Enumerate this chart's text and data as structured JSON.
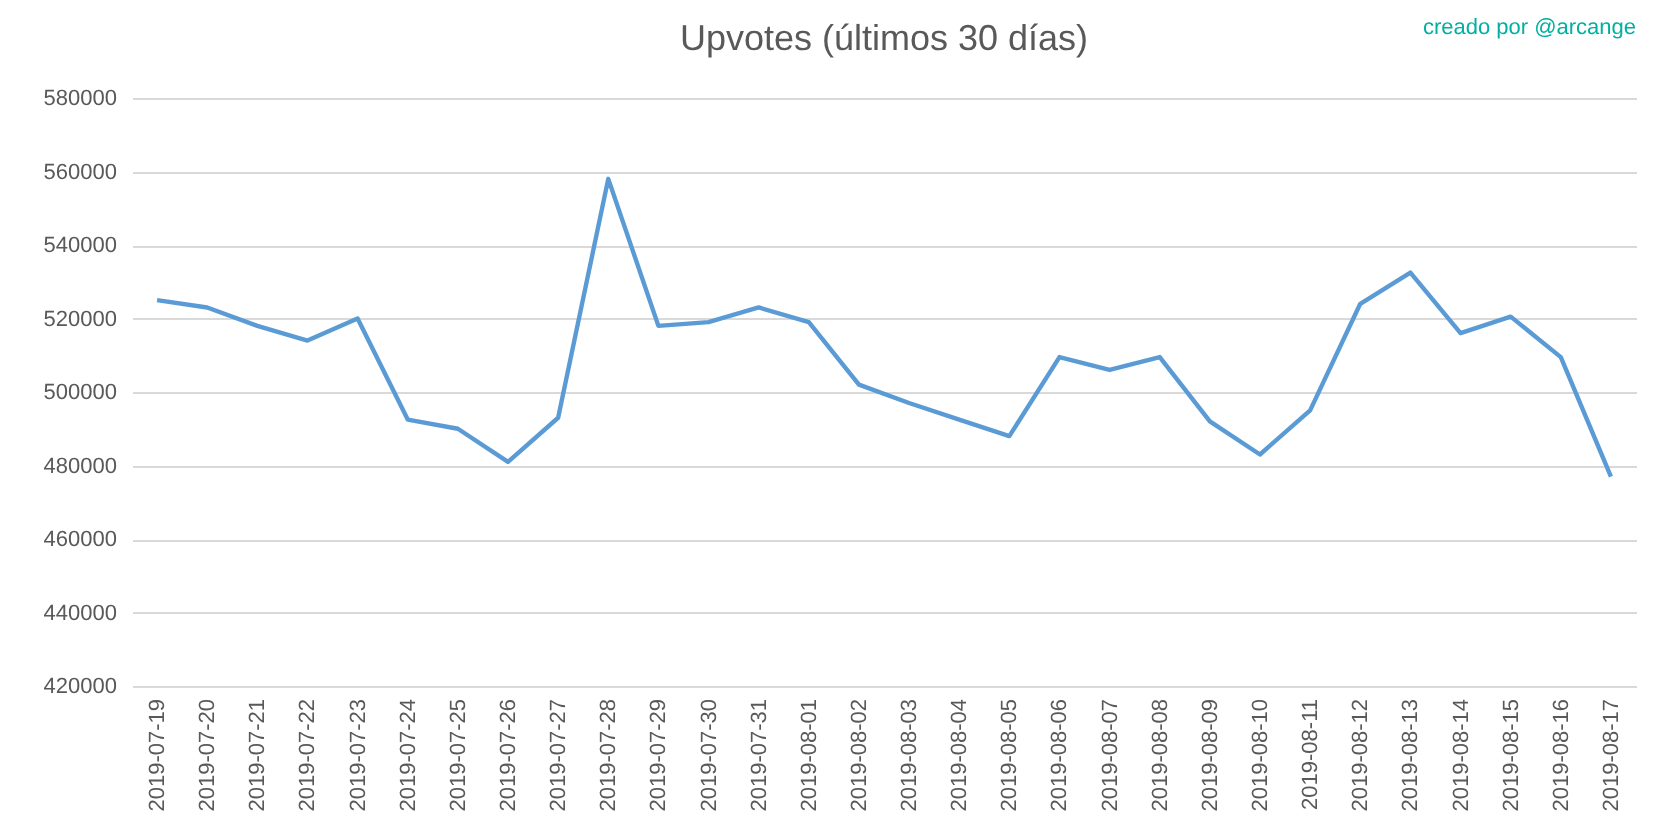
{
  "chart_data": {
    "type": "line",
    "title": "Upvotes (últimos 30 días)",
    "annotations": [
      "creado por @arcange"
    ],
    "categories": [
      "2019-07-19",
      "2019-07-20",
      "2019-07-21",
      "2019-07-22",
      "2019-07-23",
      "2019-07-24",
      "2019-07-25",
      "2019-07-26",
      "2019-07-27",
      "2019-07-28",
      "2019-07-29",
      "2019-07-30",
      "2019-07-31",
      "2019-08-01",
      "2019-08-02",
      "2019-08-03",
      "2019-08-04",
      "2019-08-05",
      "2019-08-06",
      "2019-08-07",
      "2019-08-08",
      "2019-08-09",
      "2019-08-10",
      "2019-08-11",
      "2019-08-12",
      "2019-08-13",
      "2019-08-14",
      "2019-08-15",
      "2019-08-16",
      "2019-08-17"
    ],
    "series": [
      {
        "color": "#5b9bd5",
        "values": [
          525000,
          523000,
          518000,
          514000,
          520000,
          492500,
          490000,
          481000,
          493000,
          558000,
          518000,
          519000,
          523000,
          519000,
          502000,
          497000,
          492500,
          488000,
          509500,
          506000,
          509500,
          492000,
          483000,
          495000,
          524000,
          532500,
          516000,
          520500,
          509500,
          477000
        ]
      }
    ],
    "ylim": [
      420000,
      580000
    ],
    "yticks": [
      420000,
      440000,
      460000,
      480000,
      500000,
      520000,
      540000,
      560000,
      580000
    ],
    "grid": "y",
    "legend": false,
    "marker": "none",
    "line_style": "solid"
  }
}
